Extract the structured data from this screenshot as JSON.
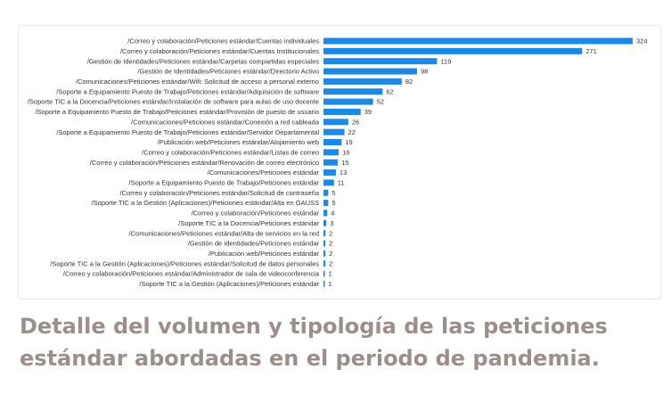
{
  "caption": "Detalle del volumen y tipología de las peticiones estándar abordadas en el periodo de pandemia.",
  "colors": {
    "bar": "#1e88e5",
    "text": "#333333",
    "caption": "#9c8f8b"
  },
  "chart_data": {
    "type": "bar",
    "orientation": "horizontal",
    "categories": [
      "/Correo y colaboración/Peticiones estándar/Cuentas individuales",
      "/Correo y colaboración/Peticiones estándar/Cuentas Institucionales",
      "/Gestión de Identidades/Peticiones estándar/Carpetas compartidas especiales",
      "/Gestión de Identidades/Peticiones estándar/Directorio Activo",
      "/Comunicaciones/Peticiones estándar/Wifi: Solicitud de acceso a personal externo",
      "/Soporte a Equipamiento Puesto de Trabajo/Peticiones estándar/Adquisición de software",
      "/Soporte TIC a la Docencia/Peticiones estándar/Instalación de software para aulas de uso docente",
      "/Soporte a Equipamiento Puesto de Trabajo/Peticiones estándar/Provisión de puesto de usuario",
      "/Comunicaciones/Peticiones estándar/Conexión a red cableada",
      "/Soporte a Equipamiento Puesto de Trabajo/Peticiones estándar/Servidor Departamental",
      "/Publicación web/Peticiones estándar/Alojamiento web",
      "/Correo y colaboración/Peticiones estándar/Listas de correo",
      "/Correo y colaboración/Peticiones estándar/Renovación de correo electrónico",
      "/Comunicaciones/Peticiones estándar",
      "/Soporte a Equipamiento Puesto de Trabajo/Peticiones estándar",
      "/Correo y colaboración/Peticiones estándar/Solicitud de contraseña",
      "/Soporte TIC a la Gestión (Aplicaciones)/Peticiones estándar/Alta en GAUSS",
      "/Correo y colaboración/Peticiones estándar",
      "/Soporte TIC a la Docencia/Peticiones estándar",
      "/Comunicaciones/Peticiones estándar/Alta de servicios en la red",
      "/Gestión de Identidades/Peticiones estándar",
      "/Publicación web/Peticiones estándar",
      "/Soporte TIC a la Gestión (Aplicaciones)/Peticiones estándar/Solicitud de datos personales",
      "/Correo y colaboración/Peticiones estándar/Administrador de sala de videoconferencia",
      "/Soporte TIC a la Gestión (Aplicaciones)/Peticiones estándar"
    ],
    "values": [
      324,
      271,
      119,
      98,
      82,
      62,
      52,
      39,
      26,
      22,
      19,
      16,
      15,
      13,
      11,
      5,
      5,
      4,
      3,
      2,
      2,
      2,
      2,
      1,
      1
    ],
    "xlim": [
      0,
      324
    ],
    "grid": false,
    "legend": "none"
  }
}
